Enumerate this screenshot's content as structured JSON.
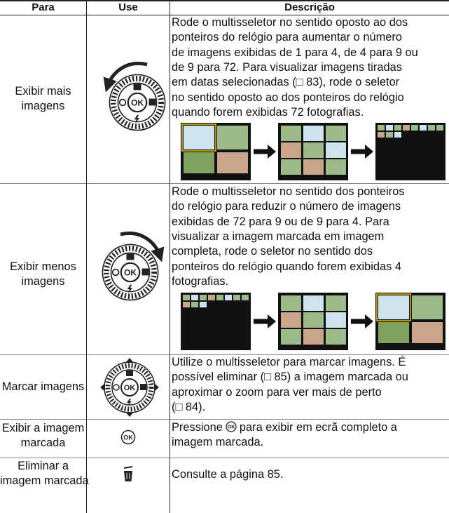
{
  "table": {
    "header": [
      "Para",
      "Use",
      "Descrição"
    ],
    "rows": [
      {
        "para": [
          "Exibir mais",
          "imagens"
        ],
        "description": [
          "Rode o multisseletor no sentido oposto ao dos",
          "ponteiros do relógio para aumentar o número",
          "de imagens exibidas de 1 para 4, de 4 para 9 ou",
          "de 9 para 72. Para visualizar imagens tiradas",
          "em datas selecionadas (□ 83), rode o seletor",
          "no sentido oposto ao dos ponteiros do relógio",
          "quando forem exibidas 72 fotografias."
        ]
      },
      {
        "para": [
          "Exibir menos",
          "imagens"
        ],
        "description": [
          "Rode o multisseletor no sentido dos ponteiros",
          "do relógio para reduzir o número de imagens",
          "exibidas de 72 para 9 ou de 9 para 4. Para",
          "visualizar a imagem marcada em imagem",
          "completa, rode o seletor no sentido dos",
          "ponteiros do relógio quando forem exibidas 4",
          "fotografias."
        ]
      },
      {
        "para": [
          "Marcar imagens"
        ],
        "description": [
          "Utilize o multisseletor para marcar imagens. É",
          "possível eliminar (□ 85) a imagem marcada ou",
          "aproximar o zoom para ver mais de perto",
          "(□ 84)."
        ]
      },
      {
        "para": [
          "Exibir a imagem",
          "marcada"
        ],
        "description": [
          [
            "Pressione",
            "para exibir em ecrã completo a"
          ],
          "imagem marcada."
        ]
      },
      {
        "para": [
          "Eliminar a",
          "imagem marcada"
        ],
        "description": [
          "Consulte a página 85."
        ]
      }
    ]
  }
}
